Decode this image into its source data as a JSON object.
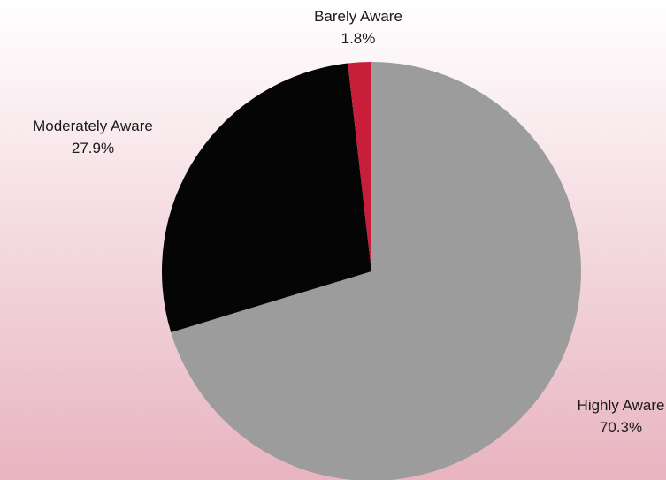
{
  "background": {
    "top_color": "#ffffff",
    "bottom_color": "#e8b4c0"
  },
  "chart_data": {
    "type": "pie",
    "title": "",
    "start_angle_deg": 0,
    "direction": "clockwise",
    "slices": [
      {
        "label": "Highly Aware",
        "value": 70.3,
        "value_label": "70.3%",
        "color": "#9c9c9c"
      },
      {
        "label": "Moderately Aware",
        "value": 27.9,
        "value_label": "27.9%",
        "color": "#050505"
      },
      {
        "label": "Barely Aware",
        "value": 1.8,
        "value_label": "1.8%",
        "color": "#c81e3a"
      }
    ]
  }
}
